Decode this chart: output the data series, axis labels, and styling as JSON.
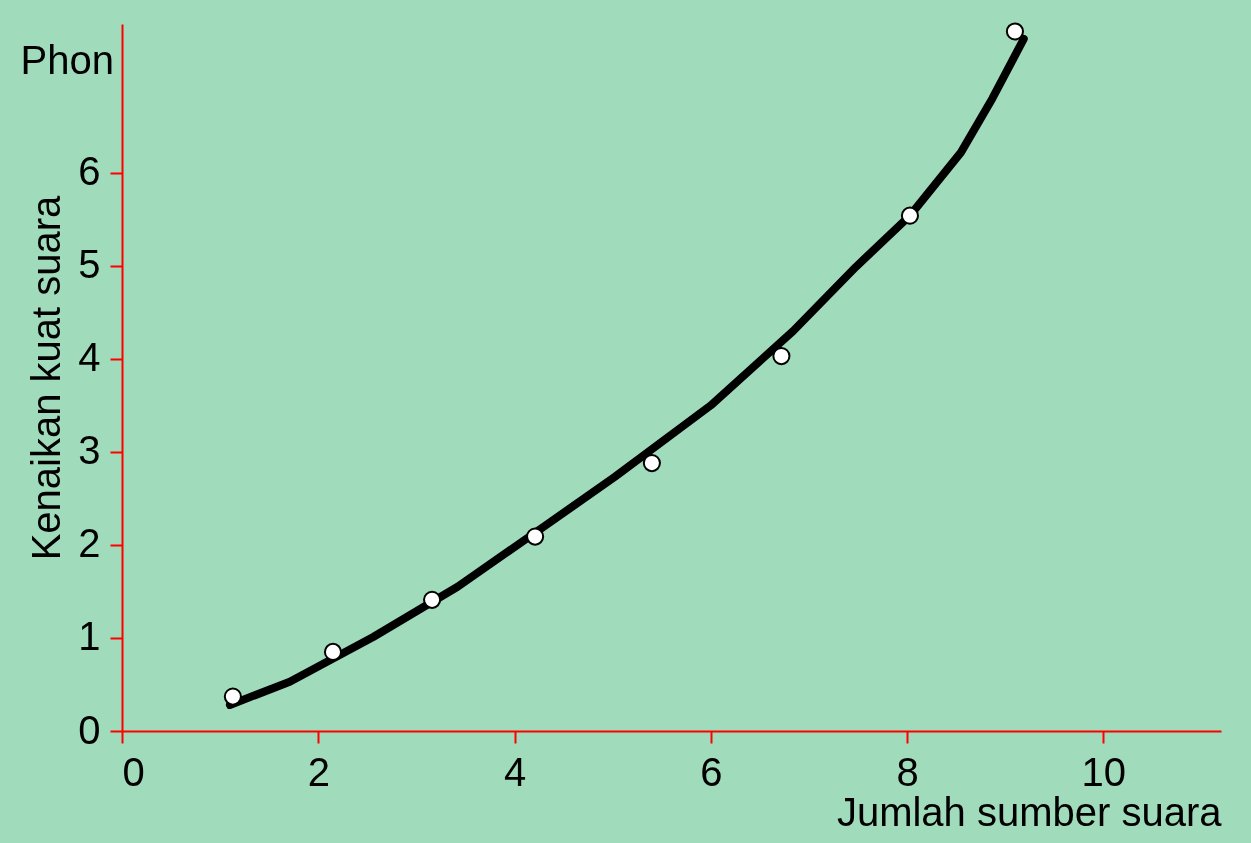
{
  "chart_data": {
    "type": "scatter",
    "xlabel": "Jumlah sumber suara",
    "ylabel": "Kenaikan kuat suara",
    "annotations": [
      "Phon"
    ],
    "xlim": [
      0,
      11.2
    ],
    "ylim": [
      0,
      7.6
    ],
    "xticks": [
      0,
      2,
      4,
      6,
      8,
      10
    ],
    "yticks": [
      0,
      1,
      2,
      3,
      4,
      5,
      6
    ],
    "grid": false,
    "series": [
      {
        "marker": "circle",
        "color": "#ffffff",
        "x": [
          1.13,
          2.15,
          3.16,
          4.21,
          5.4,
          6.72,
          8.03,
          9.1
        ],
        "values": [
          0.37,
          0.85,
          1.41,
          2.09,
          2.88,
          4.03,
          5.54,
          7.52
        ]
      },
      {
        "type": "line",
        "marker": "none",
        "line_style": "solid",
        "color": "#000000",
        "x": [
          1.1,
          1.71,
          2.56,
          3.42,
          4.33,
          5.02,
          6.0,
          6.84,
          7.48,
          8.03,
          8.55,
          8.87,
          9.19
        ],
        "values": [
          0.28,
          0.53,
          1.01,
          1.55,
          2.22,
          2.73,
          3.5,
          4.3,
          4.99,
          5.54,
          6.22,
          6.8,
          7.44
        ]
      }
    ]
  }
}
